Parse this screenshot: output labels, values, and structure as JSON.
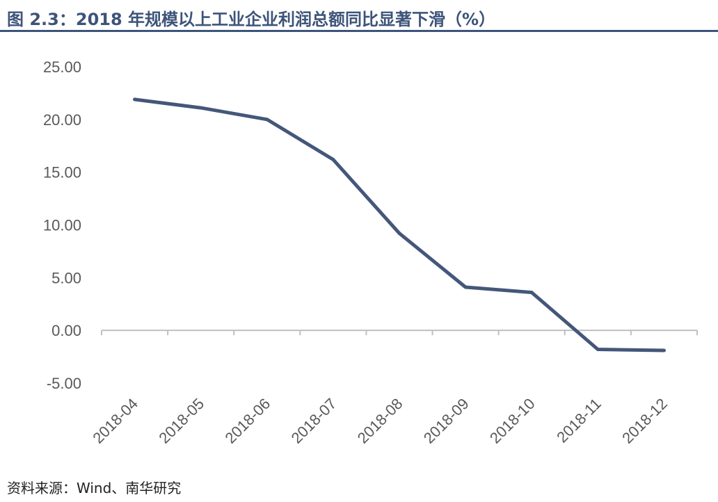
{
  "title": "图 2.3：2018 年规模以上工业企业利润总额同比显著下滑（%）",
  "source": "资料来源：Wind、南华研究",
  "colors": {
    "title": "#3d5479",
    "line": "#44577a",
    "axis": "#bfbfbf",
    "tick_text": "#595959"
  },
  "chart_data": {
    "type": "line",
    "title": "图 2.3：2018 年规模以上工业企业利润总额同比显著下滑（%）",
    "xlabel": "",
    "ylabel": "",
    "categories": [
      "2018-04",
      "2018-05",
      "2018-06",
      "2018-07",
      "2018-08",
      "2018-09",
      "2018-10",
      "2018-11",
      "2018-12"
    ],
    "series": [
      {
        "values": [
          21.9,
          21.1,
          20.0,
          16.2,
          9.2,
          4.1,
          3.6,
          -1.8,
          -1.9
        ]
      }
    ],
    "ylim": [
      -5,
      25
    ],
    "yticks": [
      "25.00",
      "20.00",
      "15.00",
      "10.00",
      "5.00",
      "0.00",
      "-5.00"
    ],
    "ytick_values": [
      25,
      20,
      15,
      10,
      5,
      0,
      -5
    ],
    "grid": false,
    "legend": "none"
  }
}
